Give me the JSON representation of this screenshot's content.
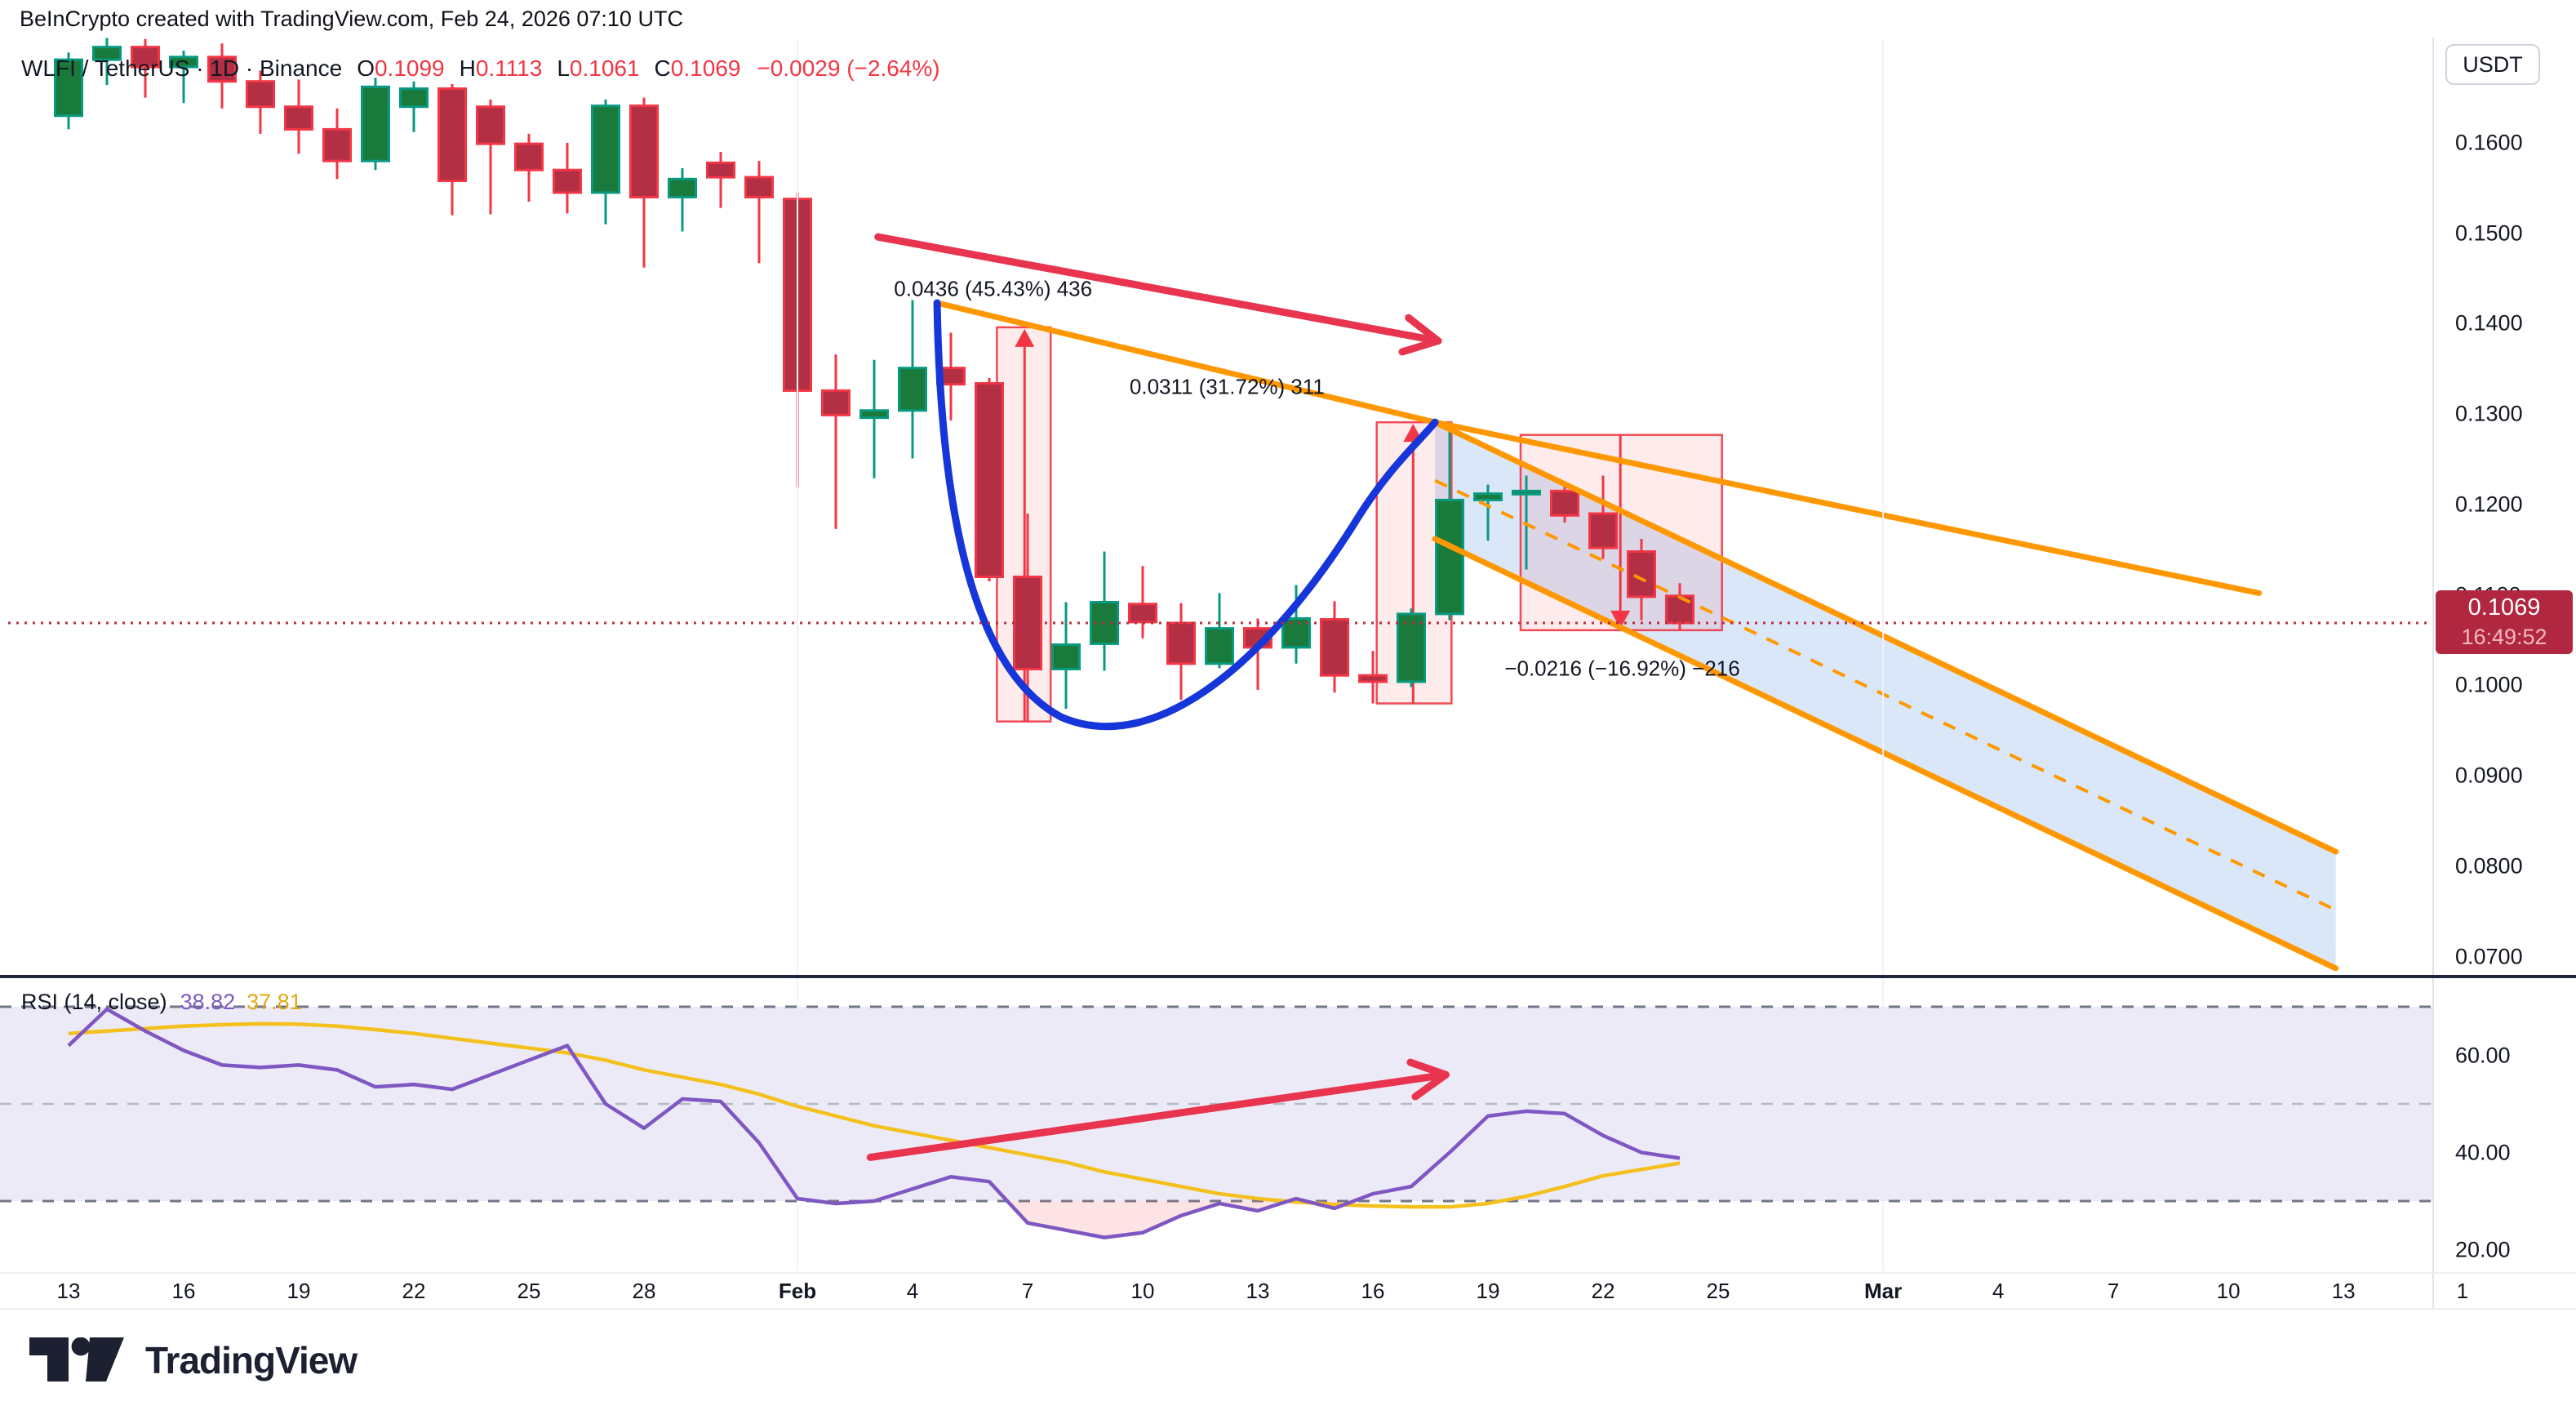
{
  "header": {
    "attribution": "BeInCrypto created with TradingView.com, Feb 24, 2026 07:10 UTC"
  },
  "legend": {
    "title": "WLFI / TetherUS · 1D · Binance",
    "ohlc": [
      {
        "k": "O",
        "v": "0.1099"
      },
      {
        "k": "H",
        "v": "0.1113"
      },
      {
        "k": "L",
        "v": "0.1061"
      },
      {
        "k": "C",
        "v": "0.1069"
      }
    ],
    "change": "−0.0029 (−2.64%)"
  },
  "price_axis": {
    "currency": "USDT",
    "ticks": [
      {
        "t": "0.1600",
        "v": 0.16
      },
      {
        "t": "0.1500",
        "v": 0.15
      },
      {
        "t": "0.1400",
        "v": 0.14
      },
      {
        "t": "0.1300",
        "v": 0.13
      },
      {
        "t": "0.1200",
        "v": 0.12
      },
      {
        "t": "0.1100",
        "v": 0.11
      },
      {
        "t": "0.1000",
        "v": 0.1
      },
      {
        "t": "0.0900",
        "v": 0.09
      },
      {
        "t": "0.0800",
        "v": 0.08
      },
      {
        "t": "0.0700",
        "v": 0.07
      }
    ],
    "tag": {
      "price": "0.1069",
      "countdown": "16:49:52",
      "value": 0.1069
    }
  },
  "time_axis": {
    "labels": [
      {
        "t": "13",
        "d": 0
      },
      {
        "t": "16",
        "d": 3
      },
      {
        "t": "19",
        "d": 6
      },
      {
        "t": "22",
        "d": 9
      },
      {
        "t": "25",
        "d": 12
      },
      {
        "t": "28",
        "d": 15
      },
      {
        "t": "Feb",
        "d": 19,
        "b": 1
      },
      {
        "t": "4",
        "d": 22
      },
      {
        "t": "7",
        "d": 25
      },
      {
        "t": "10",
        "d": 28
      },
      {
        "t": "13",
        "d": 31
      },
      {
        "t": "16",
        "d": 34
      },
      {
        "t": "19",
        "d": 37
      },
      {
        "t": "22",
        "d": 40
      },
      {
        "t": "25",
        "d": 43
      },
      {
        "t": "Mar",
        "d": 47.3,
        "b": 1
      },
      {
        "t": "4",
        "d": 50.3
      },
      {
        "t": "7",
        "d": 53.3
      },
      {
        "t": "10",
        "d": 56.3
      },
      {
        "t": "13",
        "d": 59.3
      },
      {
        "t": "1",
        "d": 62.4
      }
    ]
  },
  "rsi": {
    "legend_title": "RSI (14, close)",
    "value_main": "38.82",
    "value_smooth": "37.81",
    "ticks": [
      {
        "t": "60.00",
        "v": 60
      },
      {
        "t": "40.00",
        "v": 40
      },
      {
        "t": "20.00",
        "v": 20
      }
    ],
    "band": {
      "upper": 70,
      "mid": 50,
      "lower": 30
    }
  },
  "footer": {
    "brand": "TradingView"
  },
  "colors": {
    "up_fill": "#1a7a3c",
    "up_stroke": "#089981",
    "down_fill": "#b22f44",
    "down_stroke": "#f23645",
    "accent_orange": "#ff9800",
    "cup_blue": "#1636d9",
    "arrow_red": "#e8344e",
    "measure_fill": "rgba(242,54,69,0.10)",
    "measure_stroke": "rgba(242,54,69,0.9)",
    "channel_fill": "rgba(120,170,235,0.28)",
    "price_line": "#bb2e40",
    "tag_bg": "#b12740",
    "rsi_main": "#7e57c2",
    "rsi_smooth": "#f3c01c",
    "rsi_band": "#edeaf8",
    "band_edge": "#70768a",
    "band_mid": "#b4b9c4",
    "oversold_fill": "rgba(247,82,95,0.16)",
    "text": "#131722",
    "value_red": "#f23645",
    "separator": "#20263a",
    "axis_border": "#e0e3eb",
    "grid": "#f0f2f7"
  },
  "chart_data": {
    "type": "candlestick",
    "symbol": "WLFI / TetherUS",
    "interval": "1D",
    "exchange": "Binance",
    "ylabel": "Price (USDT)",
    "ylim": [
      0.07,
      0.16
    ],
    "dates": [
      "Jan 13",
      "Jan 14",
      "Jan 15",
      "Jan 16",
      "Jan 17",
      "Jan 18",
      "Jan 19",
      "Jan 20",
      "Jan 21",
      "Jan 22",
      "Jan 23",
      "Jan 24",
      "Jan 25",
      "Jan 26",
      "Jan 27",
      "Jan 28",
      "Jan 29",
      "Jan 30",
      "Jan 31",
      "Feb 1",
      "Feb 2",
      "Feb 3",
      "Feb 4",
      "Feb 5",
      "Feb 6",
      "Feb 7",
      "Feb 8",
      "Feb 9",
      "Feb 10",
      "Feb 11",
      "Feb 12",
      "Feb 13",
      "Feb 14",
      "Feb 15",
      "Feb 16",
      "Feb 17",
      "Feb 18",
      "Feb 19",
      "Feb 20",
      "Feb 21",
      "Feb 22",
      "Feb 23",
      "Feb 24"
    ],
    "ohlc": [
      [
        0.163,
        0.17,
        0.1615,
        0.1692
      ],
      [
        0.1692,
        0.1716,
        0.1664,
        0.1706
      ],
      [
        0.1706,
        0.1715,
        0.165,
        0.1684
      ],
      [
        0.1684,
        0.1702,
        0.1644,
        0.1695
      ],
      [
        0.1695,
        0.171,
        0.1638,
        0.1668
      ],
      [
        0.1668,
        0.168,
        0.161,
        0.164
      ],
      [
        0.164,
        0.167,
        0.1588,
        0.1615
      ],
      [
        0.1615,
        0.1638,
        0.156,
        0.158
      ],
      [
        0.158,
        0.1672,
        0.157,
        0.1662
      ],
      [
        0.164,
        0.1668,
        0.1612,
        0.166
      ],
      [
        0.166,
        0.1665,
        0.152,
        0.1558
      ],
      [
        0.164,
        0.1648,
        0.1521,
        0.1599
      ],
      [
        0.1599,
        0.161,
        0.1535,
        0.157
      ],
      [
        0.157,
        0.16,
        0.1522,
        0.1545
      ],
      [
        0.1545,
        0.1648,
        0.151,
        0.1641
      ],
      [
        0.1641,
        0.165,
        0.1462,
        0.154
      ],
      [
        0.154,
        0.1572,
        0.1502,
        0.156
      ],
      [
        0.1578,
        0.159,
        0.1528,
        0.1562
      ],
      [
        0.1562,
        0.158,
        0.1467,
        0.154
      ],
      [
        0.1538,
        0.1545,
        0.1219,
        0.1326
      ],
      [
        0.1326,
        0.1366,
        0.1173,
        0.1299
      ],
      [
        0.1296,
        0.136,
        0.1229,
        0.1304
      ],
      [
        0.1304,
        0.1426,
        0.1251,
        0.1351
      ],
      [
        0.1351,
        0.139,
        0.1293,
        0.1333
      ],
      [
        0.1334,
        0.134,
        0.1115,
        0.112
      ],
      [
        0.112,
        0.119,
        0.096,
        0.1018
      ],
      [
        0.1018,
        0.1092,
        0.0974,
        0.1045
      ],
      [
        0.1046,
        0.1148,
        0.1016,
        0.1092
      ],
      [
        0.109,
        0.1132,
        0.1052,
        0.107
      ],
      [
        0.1069,
        0.1091,
        0.0984,
        0.1024
      ],
      [
        0.1024,
        0.1102,
        0.1019,
        0.1063
      ],
      [
        0.1063,
        0.1074,
        0.0995,
        0.1042
      ],
      [
        0.1042,
        0.1111,
        0.1024,
        0.1074
      ],
      [
        0.1073,
        0.1093,
        0.0992,
        0.1011
      ],
      [
        0.1011,
        0.1038,
        0.098,
        0.1004
      ],
      [
        0.1004,
        0.1085,
        0.0998,
        0.1079
      ],
      [
        0.1079,
        0.1285,
        0.1072,
        0.1205
      ],
      [
        0.1205,
        0.1222,
        0.116,
        0.1212
      ],
      [
        0.1212,
        0.1232,
        0.1128,
        0.1215
      ],
      [
        0.1215,
        0.1222,
        0.118,
        0.1188
      ],
      [
        0.119,
        0.1232,
        0.114,
        0.1152
      ],
      [
        0.1148,
        0.1162,
        0.1072,
        0.1098
      ],
      [
        0.1099,
        0.1113,
        0.1061,
        0.1069
      ]
    ],
    "rsi_main": [
      62,
      69.5,
      65,
      61,
      58,
      57.5,
      58,
      57,
      53.5,
      54,
      53,
      56,
      59,
      62,
      50,
      45,
      51,
      50.5,
      42,
      30.5,
      29.5,
      30,
      32.5,
      35,
      34,
      25.5,
      24,
      22.5,
      23.5,
      27,
      29.5,
      28,
      30.5,
      28.5,
      31.5,
      33,
      40,
      47.5,
      48.5,
      48,
      43.5,
      40,
      38.82
    ],
    "rsi_smooth": [
      64.5,
      65,
      65.5,
      66,
      66.3,
      66.5,
      66.4,
      66,
      65.3,
      64.5,
      63.5,
      62.5,
      61.5,
      60.5,
      59,
      57,
      55.5,
      54,
      52,
      49.5,
      47.5,
      45.5,
      44,
      42.5,
      41,
      39.5,
      38,
      36,
      34.5,
      33,
      31.5,
      30.5,
      29.8,
      29.3,
      29,
      28.8,
      28.8,
      29.5,
      31,
      33,
      35.2,
      36.5,
      37.81
    ],
    "annotations": {
      "resistance_line": [
        [
          22.64,
          0.1423
        ],
        [
          35.62,
          0.1291
        ],
        [
          57.1,
          0.1102
        ]
      ],
      "channel_top": [
        [
          35.62,
          0.1291
        ],
        [
          59.1,
          0.0816
        ]
      ],
      "channel_bottom": [
        [
          35.62,
          0.1162
        ],
        [
          59.1,
          0.0687
        ]
      ],
      "cup_bezier": [
        [
          22.64,
          0.1423
        ],
        [
          22.73,
          0.1198
        ],
        [
          23.53,
          0.1018
        ],
        [
          25.87,
          0.0965
        ],
        [
          28.43,
          0.0918
        ],
        [
          31.4,
          0.1036
        ],
        [
          33.53,
          0.118
        ],
        [
          34.38,
          0.1239
        ],
        [
          35.13,
          0.1266
        ],
        [
          35.62,
          0.1291
        ]
      ],
      "trend_arrow_price": {
        "from": [
          21.1,
          0.1496
        ],
        "to": [
          35.7,
          0.1381
        ]
      },
      "trend_arrow_rsi": {
        "from": [
          20.9,
          39.0
        ],
        "to": [
          35.9,
          56.0
        ]
      },
      "measures": [
        {
          "label": "0.0436 (45.43%) 436",
          "dir": "up",
          "day_from": 24.2,
          "day_to": 25.6,
          "price_top": 0.1396,
          "price_bottom": 0.096,
          "arrow_day": 24.92,
          "label_day": 24.1,
          "label_price": 0.1438
        },
        {
          "label": "0.0311 (31.72%) 311",
          "dir": "up",
          "day_from": 34.1,
          "day_to": 36.05,
          "price_top": 0.1291,
          "price_bottom": 0.098,
          "arrow_day": 35.05,
          "label_day": 30.2,
          "label_price": 0.133
        },
        {
          "label": "−0.0216 (−16.92%) −216",
          "dir": "down",
          "day_from": 37.85,
          "day_to": 43.1,
          "price_top": 0.1277,
          "price_bottom": 0.1061,
          "arrow_day": 40.45,
          "label_day": 40.5,
          "label_price": 0.1018
        }
      ]
    }
  }
}
